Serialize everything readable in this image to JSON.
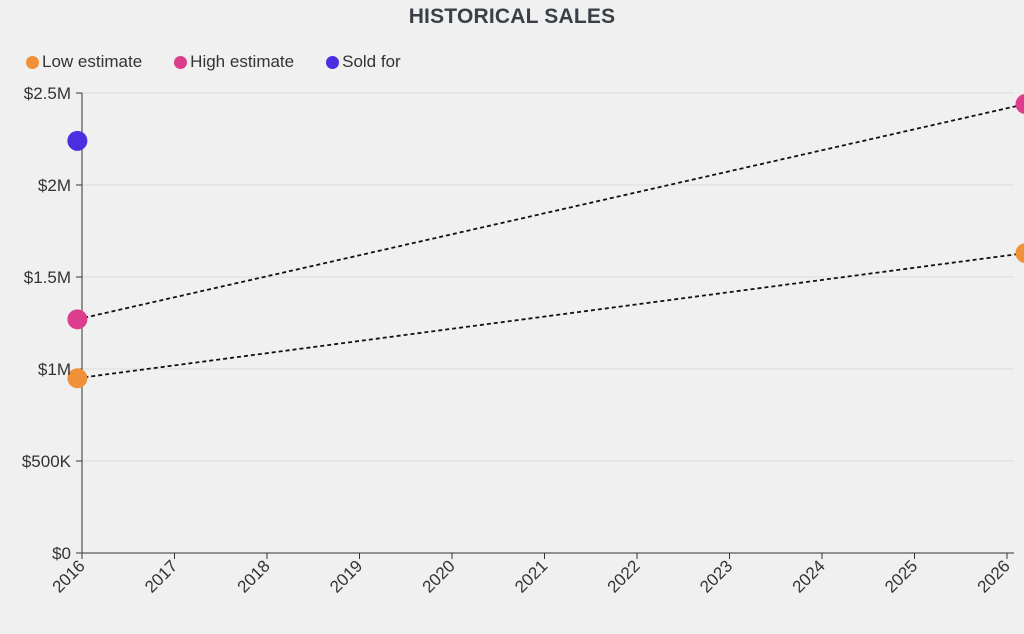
{
  "chart_data": {
    "type": "scatter",
    "title": "HISTORICAL SALES",
    "xlabel": "",
    "ylabel": "",
    "legend_position": "top-left",
    "x_ticks": [
      "2016",
      "2017",
      "2018",
      "2019",
      "2020",
      "2021",
      "2022",
      "2023",
      "2024",
      "2025",
      "2026"
    ],
    "x_range": [
      2016,
      2026.2
    ],
    "ylim": [
      0,
      2500000
    ],
    "y_ticks": [
      {
        "value": 0,
        "label": "$0"
      },
      {
        "value": 500000,
        "label": "$500K"
      },
      {
        "value": 1000000,
        "label": "$1M"
      },
      {
        "value": 1500000,
        "label": "$1.5M"
      },
      {
        "value": 2000000,
        "label": "$2M"
      },
      {
        "value": 2500000,
        "label": "$2.5M"
      }
    ],
    "grid": "horizontal",
    "series": [
      {
        "name": "Low estimate",
        "color": "#f0913a",
        "points": [
          {
            "x": 2015.95,
            "y": 950000
          },
          {
            "x": 2026.2,
            "y": 1630000
          }
        ],
        "trend_line": true
      },
      {
        "name": "High estimate",
        "color": "#dc3d8c",
        "points": [
          {
            "x": 2015.95,
            "y": 1270000
          },
          {
            "x": 2026.2,
            "y": 2440000
          }
        ],
        "trend_line": true
      },
      {
        "name": "Sold for",
        "color": "#4a2ee0",
        "points": [
          {
            "x": 2015.95,
            "y": 2240000
          }
        ],
        "trend_line": false
      }
    ]
  }
}
